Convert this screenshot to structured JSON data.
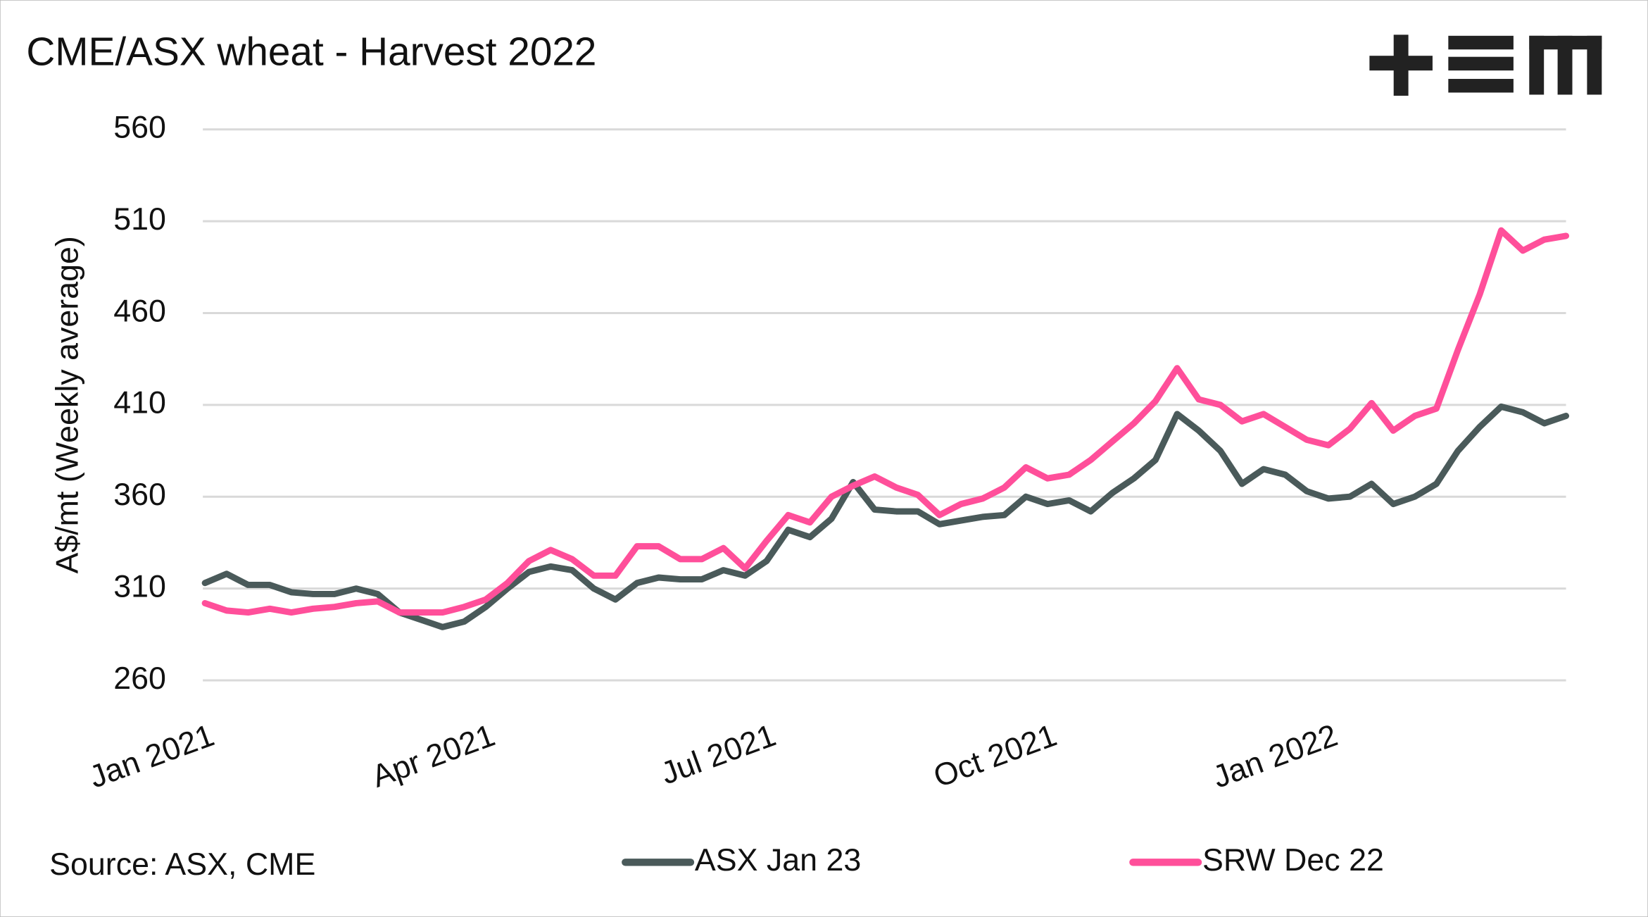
{
  "chart_data": {
    "type": "line",
    "title": "CME/ASX wheat - Harvest 2022",
    "y_label": "A$/mt (Weekly average)",
    "source": "Source: ASX, CME",
    "categories": [
      "Jan 2021",
      null,
      null,
      null,
      null,
      null,
      null,
      null,
      null,
      null,
      null,
      null,
      null,
      "Apr 2021",
      null,
      null,
      null,
      null,
      null,
      null,
      null,
      null,
      null,
      null,
      null,
      null,
      "Jul 2021",
      null,
      null,
      null,
      null,
      null,
      null,
      null,
      null,
      null,
      null,
      null,
      null,
      "Oct 2021",
      null,
      null,
      null,
      null,
      null,
      null,
      null,
      null,
      null,
      null,
      null,
      null,
      "Jan 2022",
      null,
      null,
      null,
      null,
      null,
      null,
      null,
      null,
      null,
      null,
      null
    ],
    "series": [
      {
        "name": "ASX Jan 23",
        "color": "#4a5a5a",
        "values": [
          313,
          318,
          312,
          312,
          308,
          307,
          307,
          310,
          307,
          297,
          293,
          289,
          292,
          300,
          310,
          319,
          322,
          320,
          310,
          304,
          313,
          316,
          315,
          315,
          320,
          317,
          325,
          342,
          338,
          348,
          368,
          353,
          352,
          352,
          345,
          347,
          349,
          350,
          360,
          356,
          358,
          352,
          362,
          370,
          380,
          405,
          396,
          385,
          367,
          375,
          372,
          363,
          359,
          360,
          367,
          356,
          360,
          367,
          385,
          398,
          409,
          406,
          400,
          404
        ]
      },
      {
        "name": "SRW Dec 22",
        "color": "#ff4f9a",
        "values": [
          302,
          298,
          297,
          299,
          297,
          299,
          300,
          302,
          303,
          297,
          297,
          297,
          300,
          304,
          313,
          325,
          331,
          326,
          317,
          317,
          333,
          333,
          326,
          326,
          332,
          321,
          336,
          350,
          346,
          360,
          366,
          371,
          365,
          361,
          350,
          356,
          359,
          365,
          376,
          370,
          372,
          380,
          390,
          400,
          412,
          430,
          413,
          410,
          401,
          405,
          398,
          391,
          388,
          397,
          411,
          396,
          404,
          408,
          440,
          470,
          505,
          494,
          500,
          502
        ]
      }
    ],
    "ylim": [
      260,
      560
    ],
    "yticks": [
      260,
      310,
      360,
      410,
      460,
      510,
      560
    ],
    "grid": true
  }
}
